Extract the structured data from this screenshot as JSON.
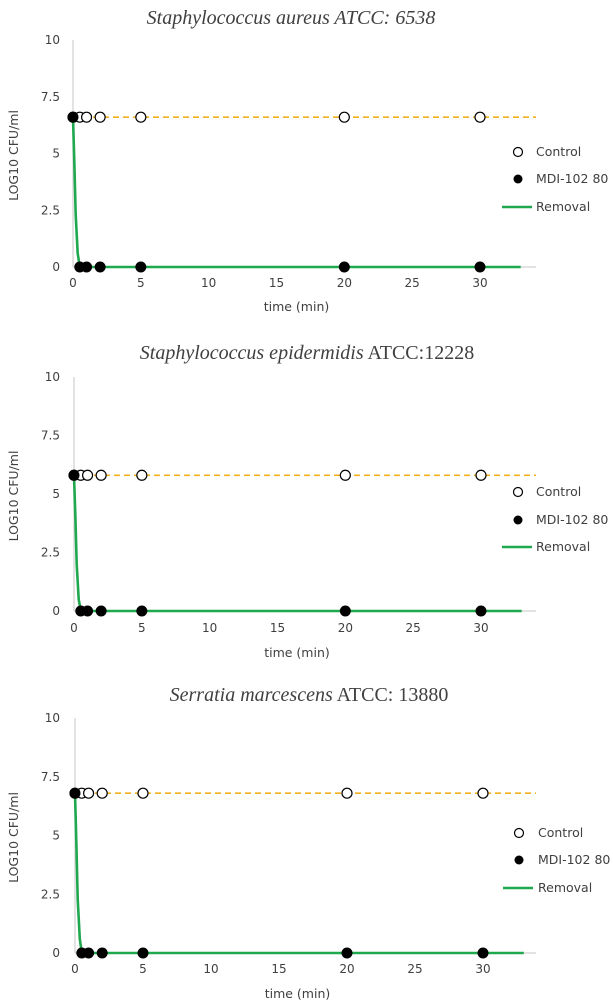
{
  "chart_data": [
    {
      "type": "line",
      "title_italic": "Staphylococcus aureus ATCC: 6538",
      "title_plain": "",
      "xlabel": "time (min)",
      "ylabel": "LOG10 CFU/ml",
      "xlim": [
        0,
        33
      ],
      "ylim": [
        0,
        10
      ],
      "xticks": [
        "0",
        "5",
        "10",
        "15",
        "20",
        "25",
        "30"
      ],
      "yticks": [
        "0",
        "2.5",
        "5",
        "7.5",
        "10"
      ],
      "legend_position": "right",
      "series": [
        {
          "name": "Control",
          "style": "dashed-line-open-circle",
          "color": "#f2b01e",
          "x": [
            0,
            0.5,
            1,
            2,
            5,
            20,
            30
          ],
          "y": [
            6.6,
            6.6,
            6.6,
            6.6,
            6.6,
            6.6,
            6.6
          ]
        },
        {
          "name": "MDI-102 80",
          "style": "filled-circle",
          "color": "#000000",
          "x": [
            0,
            0.5,
            1,
            2,
            5,
            20,
            30
          ],
          "y": [
            6.6,
            0,
            0,
            0,
            0,
            0,
            0
          ]
        },
        {
          "name": "Removal",
          "style": "solid-line",
          "color": "#1fa84e",
          "x": [
            0,
            0.1,
            0.2,
            0.35,
            0.5,
            1,
            2,
            5,
            20,
            33
          ],
          "y": [
            6.6,
            4.5,
            2.3,
            0.6,
            0,
            0,
            0,
            0,
            0,
            0
          ]
        }
      ]
    },
    {
      "type": "line",
      "title_italic": "Staphylococcus epidermidis",
      "title_plain": " ATCC:12228",
      "xlabel": "time (min)",
      "ylabel": "LOG10 CFU/ml",
      "xlim": [
        0,
        33
      ],
      "ylim": [
        0,
        10
      ],
      "xticks": [
        "0",
        "5",
        "10",
        "15",
        "20",
        "25",
        "30"
      ],
      "yticks": [
        "0",
        "2.5",
        "5",
        "7.5",
        "10"
      ],
      "legend_position": "right",
      "series": [
        {
          "name": "Control",
          "style": "dashed-line-open-circle",
          "color": "#f2b01e",
          "x": [
            0,
            0.5,
            1,
            2,
            5,
            20,
            30
          ],
          "y": [
            5.8,
            5.8,
            5.8,
            5.8,
            5.8,
            5.8,
            5.8
          ]
        },
        {
          "name": "MDI-102 80",
          "style": "filled-circle",
          "color": "#000000",
          "x": [
            0,
            0.5,
            1,
            2,
            5,
            20,
            30
          ],
          "y": [
            5.8,
            0,
            0,
            0,
            0,
            0,
            0
          ]
        },
        {
          "name": "Removal",
          "style": "solid-line",
          "color": "#1fa84e",
          "x": [
            0,
            0.1,
            0.2,
            0.35,
            0.5,
            1,
            2,
            5,
            20,
            33
          ],
          "y": [
            5.8,
            4.0,
            2.0,
            0.5,
            0,
            0,
            0,
            0,
            0,
            0
          ]
        }
      ]
    },
    {
      "type": "line",
      "title_italic": "Serratia marcescens",
      "title_plain": " ATCC: 13880",
      "xlabel": "time (min)",
      "ylabel": "LOG10 CFU/ml",
      "xlim": [
        0,
        33
      ],
      "ylim": [
        0,
        10
      ],
      "xticks": [
        "0",
        "5",
        "10",
        "15",
        "20",
        "25",
        "30"
      ],
      "yticks": [
        "0",
        "2.5",
        "5",
        "7.5",
        "10"
      ],
      "legend_position": "right",
      "series": [
        {
          "name": "Control",
          "style": "dashed-line-open-circle",
          "color": "#f2b01e",
          "x": [
            0,
            0.5,
            1,
            2,
            5,
            20,
            30
          ],
          "y": [
            6.8,
            6.8,
            6.8,
            6.8,
            6.8,
            6.8,
            6.8
          ]
        },
        {
          "name": "MDI-102 80",
          "style": "filled-circle",
          "color": "#000000",
          "x": [
            0,
            0.5,
            1,
            2,
            5,
            20,
            30
          ],
          "y": [
            6.8,
            0,
            0,
            0,
            0,
            0,
            0
          ]
        },
        {
          "name": "Removal",
          "style": "solid-line",
          "color": "#1fa84e",
          "x": [
            0,
            0.1,
            0.2,
            0.35,
            0.5,
            1,
            2,
            5,
            20,
            33
          ],
          "y": [
            6.8,
            4.6,
            2.3,
            0.6,
            0,
            0,
            0,
            0,
            0,
            0
          ]
        }
      ]
    }
  ]
}
